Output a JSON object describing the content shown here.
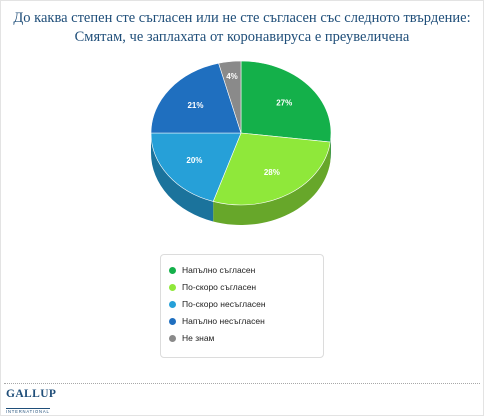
{
  "title": {
    "line1": "До каква степен сте съгласен или не сте съгласен със следното твърдение:",
    "line2": "Смятам, че заплахата от коронавируса е преувеличена"
  },
  "chart_data": {
    "type": "pie",
    "categories": [
      "Напълно съгласен",
      "По-скоро съгласен",
      "По-скоро несъгласен",
      "Напълно несъгласен",
      "Не знам"
    ],
    "values": [
      27,
      28,
      20,
      21,
      4
    ],
    "labels": [
      "27%",
      "28%",
      "20%",
      "21%",
      "4%"
    ],
    "colors": [
      "#14b04a",
      "#8fe83a",
      "#26a0d8",
      "#1f6fbf",
      "#8a8a8a"
    ],
    "legend_position": "bottom"
  },
  "footer": {
    "logo_text": "GALLUP",
    "logo_sub": "INTERNATIONAL"
  }
}
